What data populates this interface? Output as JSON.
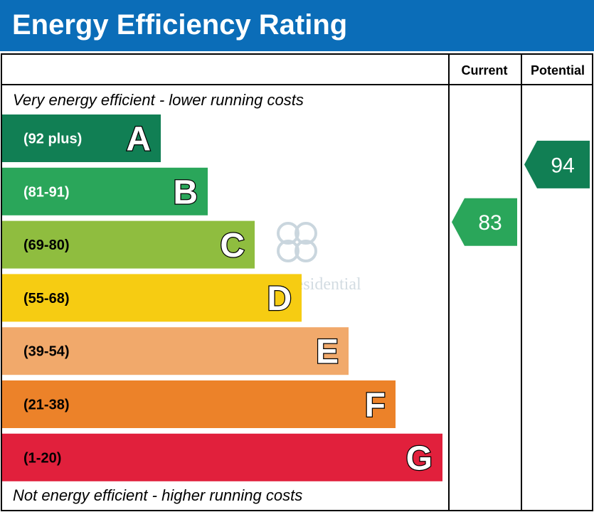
{
  "header": {
    "title": "Energy Efficiency Rating"
  },
  "columns": {
    "current": "Current",
    "potential": "Potential"
  },
  "notes": {
    "top": "Very energy efficient - lower running costs",
    "bottom": "Not energy efficient - higher running costs"
  },
  "watermark": {
    "text": "Domus Residential"
  },
  "chart_data": {
    "type": "bar",
    "title": "Energy Efficiency Rating",
    "bands": [
      {
        "letter": "A",
        "range": "(92 plus)",
        "min": 92,
        "max": 100,
        "color": "#117f54",
        "range_color": "#ffffff"
      },
      {
        "letter": "B",
        "range": "(81-91)",
        "min": 81,
        "max": 91,
        "color": "#2aa65a",
        "range_color": "#ffffff"
      },
      {
        "letter": "C",
        "range": "(69-80)",
        "min": 69,
        "max": 80,
        "color": "#8fbd3f",
        "range_color": "#000000"
      },
      {
        "letter": "D",
        "range": "(55-68)",
        "min": 55,
        "max": 68,
        "color": "#f6cc12",
        "range_color": "#000000"
      },
      {
        "letter": "E",
        "range": "(39-54)",
        "min": 39,
        "max": 54,
        "color": "#f1a96b",
        "range_color": "#000000"
      },
      {
        "letter": "F",
        "range": "(21-38)",
        "min": 21,
        "max": 38,
        "color": "#ec8229",
        "range_color": "#000000"
      },
      {
        "letter": "G",
        "range": "(1-20)",
        "min": 1,
        "max": 20,
        "color": "#e1203c",
        "range_color": "#000000"
      }
    ],
    "current": {
      "value": 83,
      "band": "B",
      "color": "#2aa65a"
    },
    "potential": {
      "value": 94,
      "band": "A",
      "color": "#117f54"
    }
  }
}
